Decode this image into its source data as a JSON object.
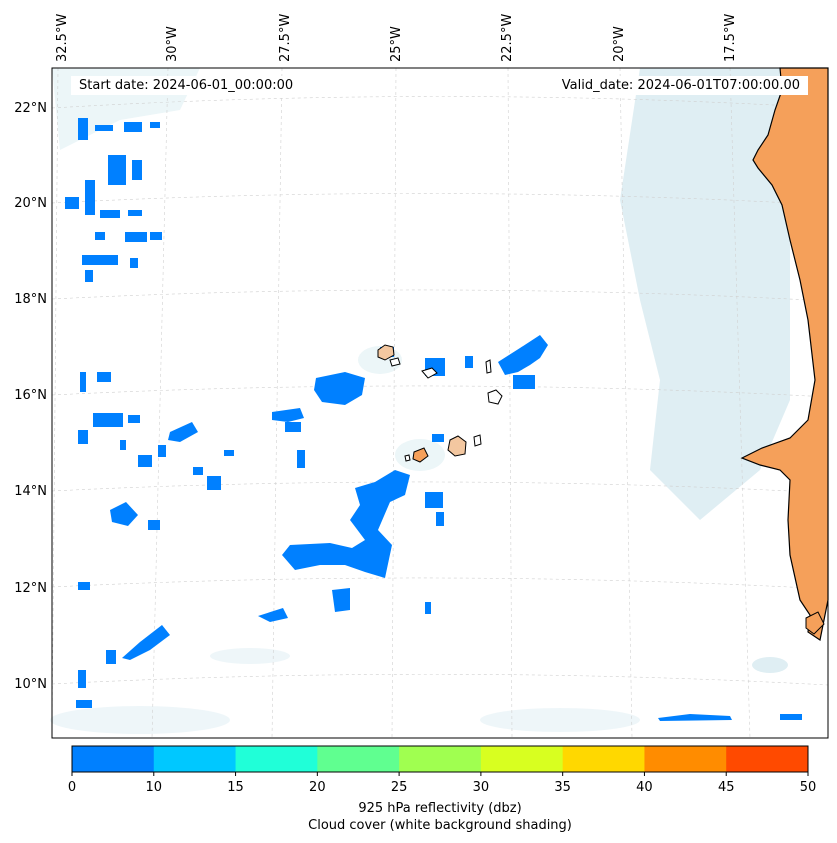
{
  "header": {
    "start_date": "Start date: 2024-06-01_00:00:00",
    "valid_date": "Valid_date: 2024-06-01T07:00:00.00"
  },
  "lon_labels": [
    "32.5°W",
    "30°W",
    "27.5°W",
    "25°W",
    "22.5°W",
    "20°W",
    "17.5°W"
  ],
  "lat_labels": [
    "22°N",
    "20°N",
    "18°N",
    "16°N",
    "14°N",
    "12°N",
    "10°N"
  ],
  "colorbar": {
    "ticks": [
      "0",
      "10",
      "15",
      "20",
      "25",
      "30",
      "35",
      "40",
      "45",
      "50"
    ],
    "colors": [
      "#0080ff",
      "#00c8ff",
      "#20ffd8",
      "#60ff90",
      "#a0ff50",
      "#d8ff20",
      "#ffd800",
      "#ff8c00",
      "#ff4a00"
    ],
    "label_line1": "925 hPa reflectivity (dbz)",
    "label_line2": "Cloud cover (white background shading)"
  },
  "colors": {
    "echo": "#0080ff",
    "land": "#f5a05a",
    "cloud": "#cde6ee"
  }
}
